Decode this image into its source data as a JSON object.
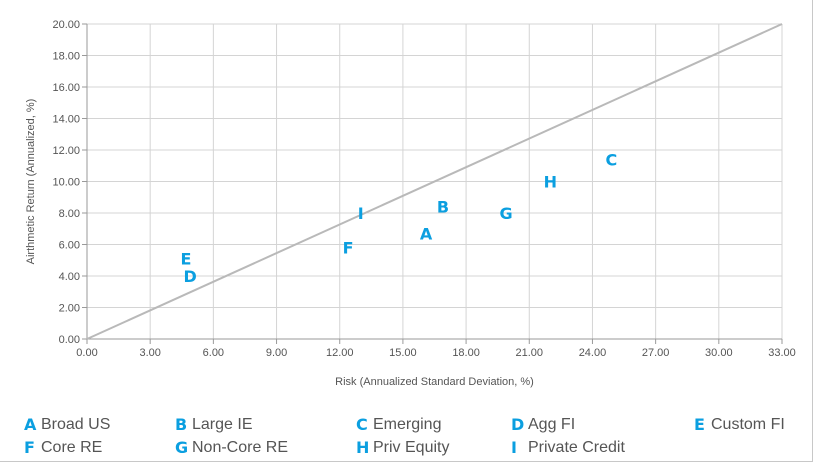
{
  "chart_data": {
    "type": "scatter",
    "title": "",
    "xlabel": "Risk (Annualized Standard Deviation, %)",
    "ylabel": "Airthmetic Return (Annualized, %)",
    "xlim": [
      0,
      33
    ],
    "ylim": [
      0,
      20
    ],
    "x_ticks": [
      "0.00",
      "3.00",
      "6.00",
      "9.00",
      "12.00",
      "15.00",
      "18.00",
      "21.00",
      "24.00",
      "27.00",
      "30.00",
      "33.00"
    ],
    "y_ticks": [
      "0.00",
      "2.00",
      "4.00",
      "6.00",
      "8.00",
      "10.00",
      "12.00",
      "14.00",
      "16.00",
      "18.00",
      "20.00"
    ],
    "grid": true,
    "reference_line": {
      "x": [
        0,
        33
      ],
      "y": [
        0,
        20
      ]
    },
    "marker_color": "#0b9fe0",
    "points": [
      {
        "letter": "A",
        "name": "Broad US",
        "x": 16.1,
        "y": 6.7
      },
      {
        "letter": "B",
        "name": "Large IE",
        "x": 16.9,
        "y": 8.4
      },
      {
        "letter": "C",
        "name": "Emerging",
        "x": 24.9,
        "y": 11.4
      },
      {
        "letter": "D",
        "name": "Agg FI",
        "x": 4.9,
        "y": 4.0
      },
      {
        "letter": "E",
        "name": "Custom FI",
        "x": 4.7,
        "y": 5.1
      },
      {
        "letter": "F",
        "name": "Core RE",
        "x": 12.4,
        "y": 5.8
      },
      {
        "letter": "G",
        "name": "Non-Core RE",
        "x": 19.9,
        "y": 8.0
      },
      {
        "letter": "H",
        "name": "Priv Equity",
        "x": 22.0,
        "y": 10.0
      },
      {
        "letter": "I",
        "name": "Private Credit",
        "x": 13.0,
        "y": 8.0
      }
    ],
    "legend_position": "bottom"
  }
}
